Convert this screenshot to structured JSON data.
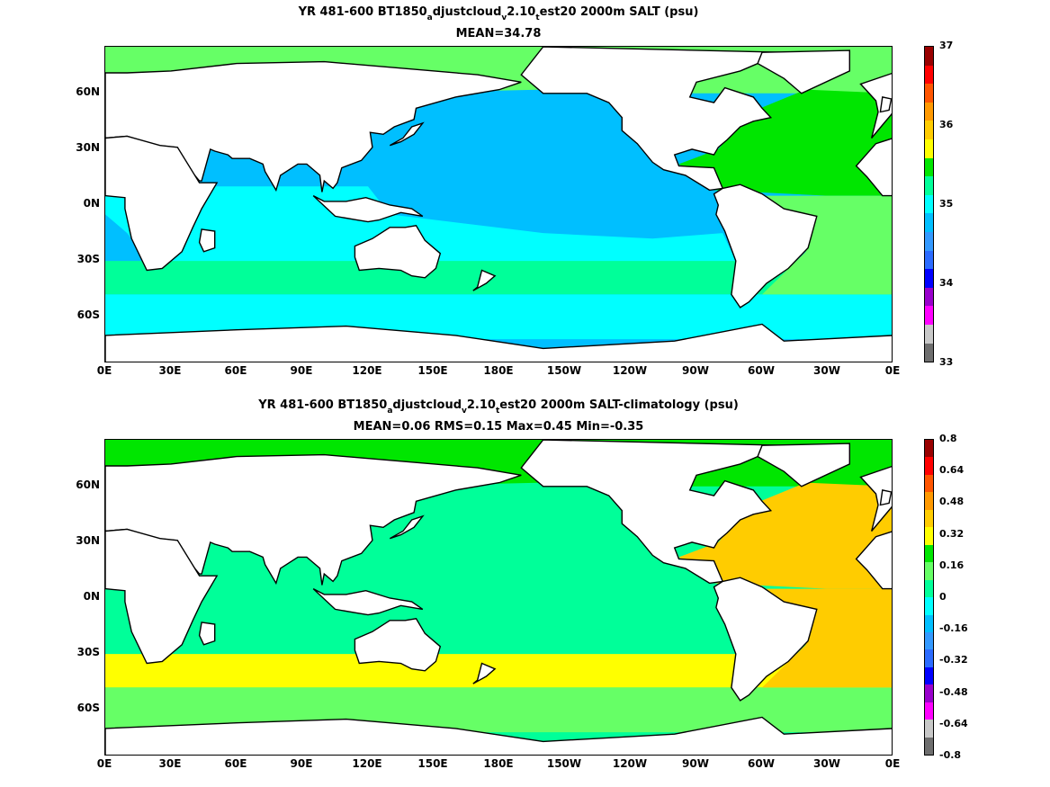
{
  "panels": [
    {
      "title_parts": [
        "YR 481-600 BT1850",
        "a",
        "djustcloud",
        "v",
        "2.10",
        "t",
        "est20 2000m SALT (psu)"
      ],
      "subtitle": "MEAN=34.78",
      "colorbar": {
        "colors": [
          "#6e6e6e",
          "#c8c8c8",
          "#ff00ff",
          "#9900cc",
          "#0000ff",
          "#2b6bff",
          "#3399ff",
          "#00bfff",
          "#00ffff",
          "#00ff99",
          "#00e600",
          "#ffff00",
          "#ffcc00",
          "#ff9900",
          "#ff5500",
          "#ff0000",
          "#990000"
        ],
        "labels": [
          {
            "text": "37",
            "pos": 1.0
          },
          {
            "text": "36",
            "pos": 0.75
          },
          {
            "text": "35",
            "pos": 0.5
          },
          {
            "text": "34",
            "pos": 0.25
          },
          {
            "text": "33",
            "pos": 0.0
          }
        ]
      },
      "fields": {
        "arctic": "#66ff66",
        "n_pacific": "#00bfff",
        "indian": "#00ffff",
        "s_band": "#00ff99",
        "south": "#00ffff",
        "atlantic_n": "#00e600",
        "atlantic_s": "#66ff66",
        "s_pacific": "#00ffff"
      }
    },
    {
      "title_parts": [
        "YR 481-600 BT1850",
        "a",
        "djustcloud",
        "v",
        "2.10",
        "t",
        "est20 2000m SALT-climatology (psu)"
      ],
      "subtitle": "MEAN=0.06   RMS=0.15   Max=0.45   Min=-0.35",
      "colorbar": {
        "colors": [
          "#6e6e6e",
          "#c8c8c8",
          "#ff00ff",
          "#9900cc",
          "#0000ff",
          "#2b6bff",
          "#3399ff",
          "#00bfff",
          "#00ffff",
          "#00ff99",
          "#66ff66",
          "#00e600",
          "#ffff00",
          "#ffcc00",
          "#ff9900",
          "#ff5500",
          "#ff0000",
          "#990000"
        ],
        "labels": [
          {
            "text": "0.8",
            "pos": 1.0
          },
          {
            "text": "0.64",
            "pos": 0.9
          },
          {
            "text": "0.48",
            "pos": 0.8
          },
          {
            "text": "0.32",
            "pos": 0.7
          },
          {
            "text": "0.16",
            "pos": 0.6
          },
          {
            "text": "0",
            "pos": 0.5
          },
          {
            "text": "-0.16",
            "pos": 0.4
          },
          {
            "text": "-0.32",
            "pos": 0.3
          },
          {
            "text": "-0.48",
            "pos": 0.2
          },
          {
            "text": "-0.64",
            "pos": 0.1
          },
          {
            "text": "-0.8",
            "pos": 0.0
          }
        ]
      },
      "fields": {
        "arctic": "#00e600",
        "n_pacific": "#00ff99",
        "indian": "#00ff99",
        "s_band": "#ffff00",
        "south": "#66ff66",
        "atlantic_n": "#ffcc00",
        "atlantic_s": "#ffcc00",
        "s_pacific": "#00ff99"
      }
    }
  ],
  "axes": {
    "x_ticks": [
      "0E",
      "30E",
      "60E",
      "90E",
      "120E",
      "150E",
      "180E",
      "150W",
      "120W",
      "90W",
      "60W",
      "30W",
      "0E"
    ],
    "y_ticks": [
      "60N",
      "30N",
      "0N",
      "30S",
      "60S"
    ]
  }
}
